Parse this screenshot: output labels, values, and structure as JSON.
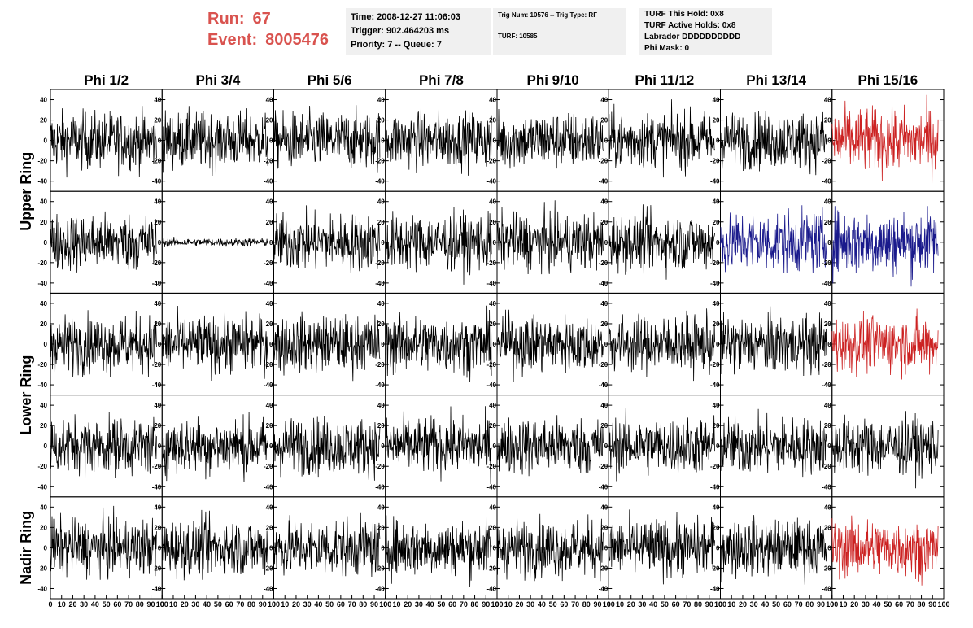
{
  "header": {
    "run_label": "Run:",
    "run_value": "67",
    "event_label": "Event:",
    "event_value": "8005476",
    "time": "Time: 2008-12-27 11:06:03",
    "trigger": "Trigger: 902.464203 ms",
    "priority": "Priority: 7 -- Queue: 7",
    "trig_num": "Trig Num: 10576 -- Trig Type: RF",
    "turf": "TURF: 10585",
    "turf_this_hold": "TURF This Hold: 0x8",
    "turf_active_holds": "TURF Active Holds: 0x8",
    "labrador": "Labrador DDDDDDDDDD",
    "phi_mask": "Phi Mask: 0"
  },
  "colors": {
    "normal": "#000000",
    "red": "#cc2222",
    "blue": "#1a1a8c",
    "heading_red": "#d9534f",
    "info_bg": "#f0f0f0"
  },
  "chart_data": {
    "type": "line",
    "columns": [
      "Phi 1/2",
      "Phi 3/4",
      "Phi 5/6",
      "Phi 7/8",
      "Phi 9/10",
      "Phi 11/12",
      "Phi 13/14",
      "Phi 15/16"
    ],
    "rows": [
      "Upper Ring",
      "Upper Ring",
      "Lower Ring",
      "Lower Ring",
      "Nadir Ring"
    ],
    "row_labels": [
      "Upper Ring",
      "Lower Ring",
      "Nadir Ring"
    ],
    "xlim": [
      0,
      100
    ],
    "ylim": [
      -50,
      50
    ],
    "x_ticks": [
      0,
      10,
      20,
      30,
      40,
      50,
      60,
      70,
      80,
      90,
      100
    ],
    "y_ticks": [
      -40,
      -20,
      0,
      20,
      40
    ],
    "waveform_x_range": [
      0,
      95
    ],
    "amplitudes": [
      [
        14,
        14,
        14,
        14,
        14,
        14,
        14,
        16
      ],
      [
        14,
        2,
        14,
        14,
        14,
        14,
        15,
        16
      ],
      [
        14,
        14,
        14,
        14,
        14,
        14,
        14,
        14
      ],
      [
        14,
        14,
        14,
        14,
        14,
        14,
        14,
        14
      ],
      [
        14,
        14,
        14,
        14,
        14,
        14,
        14,
        14
      ]
    ],
    "trace_colors": [
      [
        "normal",
        "normal",
        "normal",
        "normal",
        "normal",
        "normal",
        "normal",
        "red"
      ],
      [
        "normal",
        "normal",
        "normal",
        "normal",
        "normal",
        "normal",
        "blue",
        "blue"
      ],
      [
        "normal",
        "normal",
        "normal",
        "normal",
        "normal",
        "normal",
        "normal",
        "red"
      ],
      [
        "normal",
        "normal",
        "normal",
        "normal",
        "normal",
        "normal",
        "normal",
        "normal"
      ],
      [
        "normal",
        "normal",
        "normal",
        "normal",
        "normal",
        "normal",
        "normal",
        "red"
      ]
    ]
  }
}
